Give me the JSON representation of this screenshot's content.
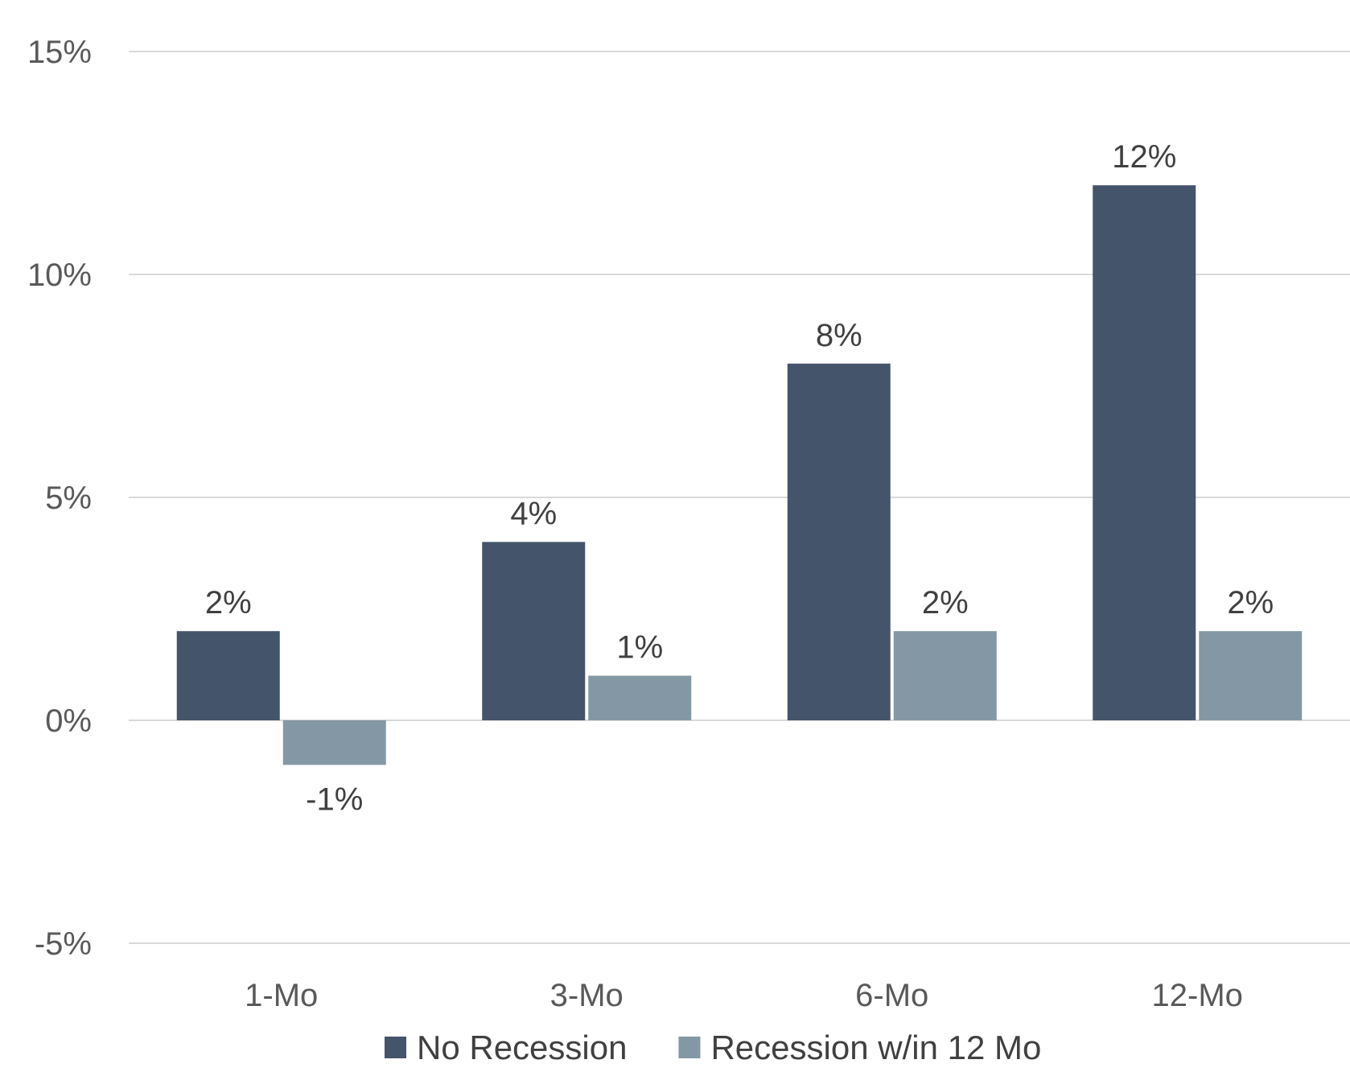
{
  "chart_data": {
    "type": "bar",
    "title": "",
    "xlabel": "",
    "ylabel": "",
    "categories": [
      "1-Mo",
      "3-Mo",
      "6-Mo",
      "12-Mo"
    ],
    "series": [
      {
        "name": "No Recession",
        "values": [
          2,
          4,
          8,
          12
        ],
        "labels": [
          "2%",
          "4%",
          "8%",
          "12%"
        ],
        "color": "#44546a"
      },
      {
        "name": "Recession w/in 12 Mo",
        "values": [
          -1,
          1,
          2,
          2
        ],
        "labels": [
          "-1%",
          "1%",
          "2%",
          "2%"
        ],
        "color": "#8497a4"
      }
    ],
    "ylim": [
      -5,
      15
    ],
    "yticks": [
      -5,
      0,
      5,
      10,
      15
    ],
    "ytick_labels": [
      "-5%",
      "0%",
      "5%",
      "10%",
      "15%"
    ],
    "grid": true,
    "gridline_color": "#d9d9d9",
    "legend_position": "bottom"
  }
}
